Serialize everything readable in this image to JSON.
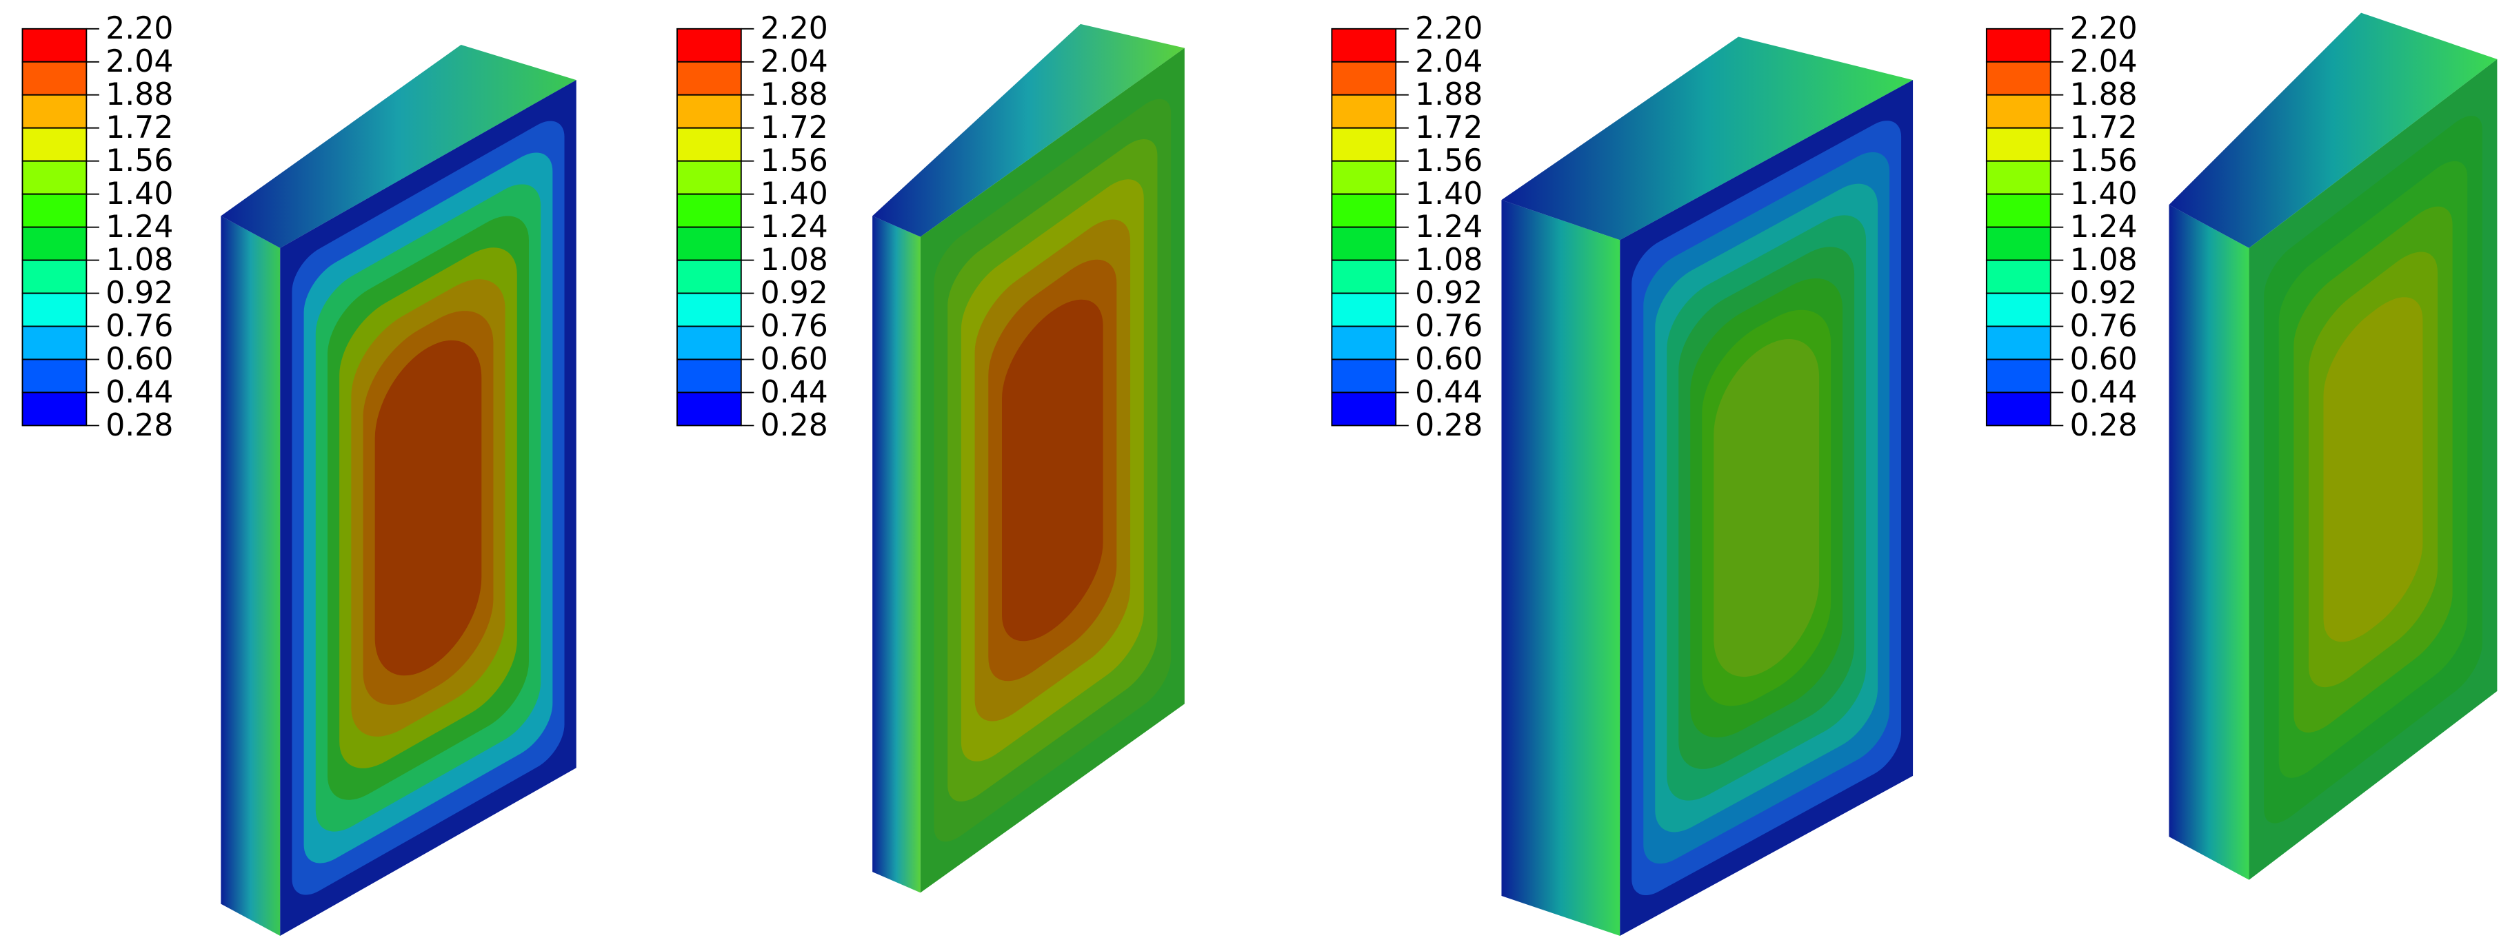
{
  "legend_colors": [
    "#ff0000",
    "#ff5a00",
    "#ffb400",
    "#e6f500",
    "#8cff00",
    "#32ff00",
    "#00e632",
    "#00ff96",
    "#00ffe6",
    "#00b4ff",
    "#005aff",
    "#0000ff"
  ],
  "panels": [
    {
      "legend": {
        "labels": [
          "2.20",
          "2.04",
          "1.88",
          "1.72",
          "1.56",
          "1.40",
          "1.24",
          "1.08",
          "0.92",
          "0.76",
          "0.60",
          "0.44",
          "0.28"
        ]
      }
    },
    {
      "legend": {
        "labels": [
          "2.20",
          "2.04",
          "1.88",
          "1.72",
          "1.56",
          "1.40",
          "1.24",
          "1.08",
          "0.92",
          "0.76",
          "0.60",
          "0.44",
          "0.28"
        ]
      }
    },
    {
      "legend": {
        "labels": [
          "2.20",
          "2.04",
          "1.88",
          "1.72",
          "1.56",
          "1.40",
          "1.24",
          "1.08",
          "0.92",
          "0.76",
          "0.60",
          "0.44",
          "0.28"
        ]
      }
    },
    {
      "legend": {
        "labels": [
          "2.20",
          "2.04",
          "1.88",
          "1.72",
          "1.56",
          "1.40",
          "1.24",
          "1.08",
          "0.92",
          "0.76",
          "0.60",
          "0.44",
          "0.28"
        ]
      }
    }
  ]
}
